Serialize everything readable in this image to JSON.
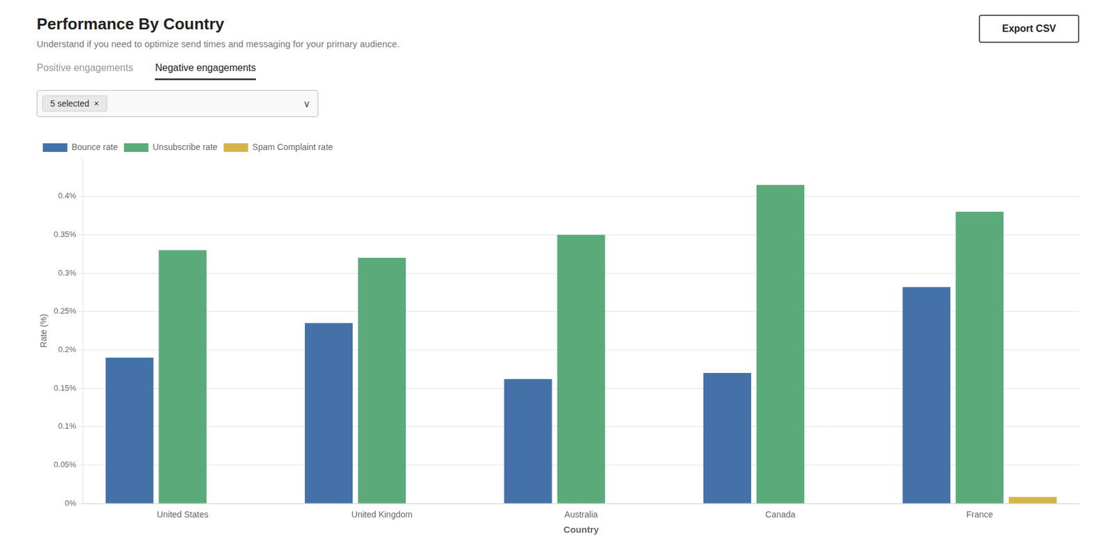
{
  "chart_data": {
    "type": "bar",
    "title": "Performance By Country",
    "subtitle": "Understand if you need to optimize send times and messaging for your primary audience.",
    "annotations": [
      "Positive engagements",
      "Negative engagements",
      "5 selected  ×",
      "∨",
      "Export CSV"
    ],
    "x_label": "Country",
    "y_label": "Rate (%)",
    "categories": [
      "United States",
      "United Kingdom",
      "Australia",
      "Canada",
      "France"
    ],
    "series": [
      {
        "name": "Bounce rate",
        "color": "#4472a8",
        "values": [
          0.0019,
          0.00235,
          0.00162,
          0.0017,
          0.00282
        ]
      },
      {
        "name": "Unsubscribe rate",
        "color": "#5aaa7a",
        "values": [
          0.0033,
          0.0032,
          0.0035,
          0.00415,
          0.0038
        ]
      },
      {
        "name": "Spam Complaint rate",
        "color": "#d4b44a",
        "values": [
          0.0,
          0.0,
          0.0,
          0.0,
          8.5e-05
        ]
      }
    ],
    "ylim": [
      0,
      0.0045
    ],
    "yticks": [
      {
        "value": 0,
        "label": "0%"
      },
      {
        "value": 0.0005,
        "label": "0.05%"
      },
      {
        "value": 0.001,
        "label": "0.1%"
      },
      {
        "value": 0.0015,
        "label": "0.15%"
      },
      {
        "value": 0.002,
        "label": "0.2%"
      },
      {
        "value": 0.0025,
        "label": "0.25%"
      },
      {
        "value": 0.003,
        "label": "0.3%"
      },
      {
        "value": 0.0035,
        "label": "0.35%"
      },
      {
        "value": 0.004,
        "label": "0.4%"
      }
    ],
    "grid": true,
    "legend": "upper left"
  }
}
